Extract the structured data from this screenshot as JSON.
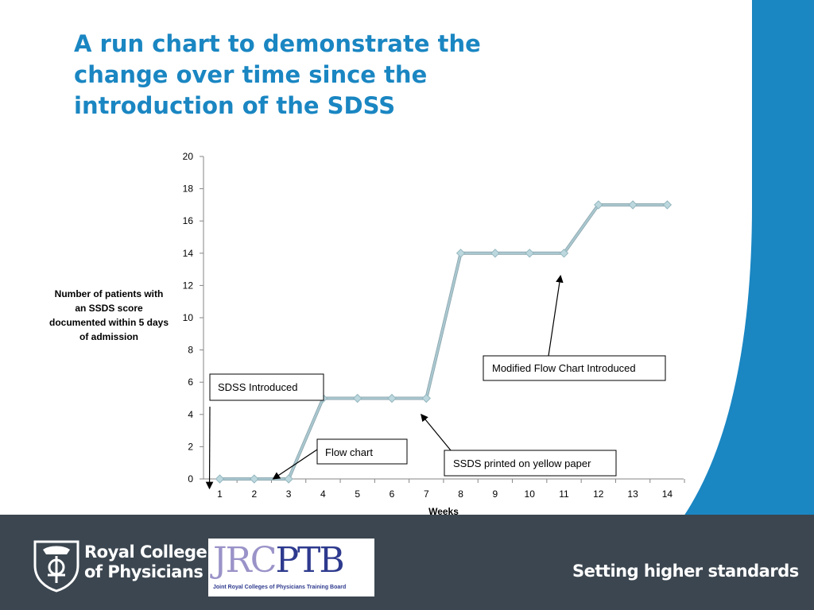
{
  "slide": {
    "title": "A run chart to demonstrate the change over time since the introduction of the SDSS",
    "accent_color": "#1a86c2",
    "footer_color": "#3b4650"
  },
  "chart_data": {
    "type": "line",
    "title": "",
    "xlabel": "Weeks",
    "ylabel": "Number of patients with an SSDS score documented within 5 days of admission",
    "ylabel_lines": [
      "Number of patients with",
      "an SSDS score",
      "documented within 5 days",
      "of admission"
    ],
    "x": [
      1,
      2,
      3,
      4,
      5,
      6,
      7,
      8,
      9,
      10,
      11,
      12,
      13,
      14
    ],
    "series": [
      {
        "values": [
          0,
          0,
          0,
          5,
          5,
          5,
          5,
          14,
          14,
          14,
          14,
          17,
          17,
          17
        ],
        "color": "#a9c7cf",
        "marker": "diamond"
      }
    ],
    "ylim": [
      0,
      20
    ],
    "y_ticks": [
      0,
      2,
      4,
      6,
      8,
      10,
      12,
      14,
      16,
      18,
      20
    ],
    "grid": false,
    "annotations": [
      {
        "text": "SDSS Introduced",
        "arrow_to_week": 0.7,
        "arrow_to_value": 0
      },
      {
        "text": "Flow chart",
        "arrow_to_week": 2.55,
        "arrow_to_value": 0
      },
      {
        "text": "SSDS printed on yellow paper",
        "arrow_to_week": 6.85,
        "arrow_to_value": 4
      },
      {
        "text": "Modified Flow Chart Introduced",
        "arrow_to_week": 10.9,
        "arrow_to_value": 12.6
      }
    ]
  },
  "footer": {
    "org_name_line1": "Royal College",
    "org_name_line2": "of Physicians",
    "partner_letters_a": "JRC",
    "partner_letters_b": "PTB",
    "partner_name": "Joint Royal Colleges of Physicians Training Board",
    "tagline": "Setting higher standards"
  }
}
